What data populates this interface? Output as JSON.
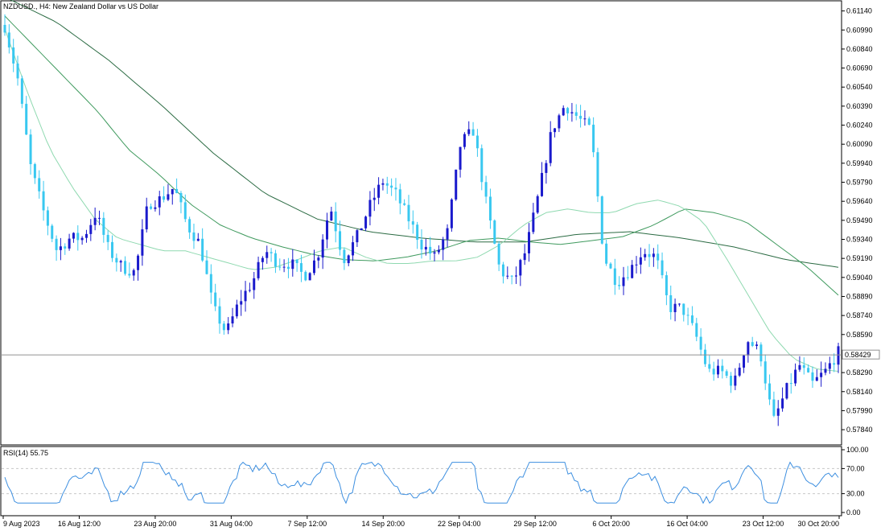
{
  "chart_title": "NZDUSD., H4:  New Zealand Dollar vs US Dollar",
  "current_price_label": "0.58429",
  "rsi_title": "RSI(14) 55.75",
  "colors": {
    "bull": "#1a1acc",
    "bear": "#39c8f0",
    "ma_fast": "#8fd9b0",
    "ma_mid": "#3f9a5e",
    "ma_slow": "#2b6b43",
    "rsi": "#3d8fe0",
    "frame": "#000000",
    "grid_dash": "#c8c8c8",
    "price_line": "#909090"
  },
  "chart_data": {
    "type": "candlestick",
    "symbol": "NZDUSD.",
    "timeframe": "H4",
    "price_ylim": [
      0.5772,
      0.6122
    ],
    "price_ticks": [
      0.6114,
      0.6099,
      0.6084,
      0.6069,
      0.6054,
      0.6039,
      0.6024,
      0.6009,
      0.5994,
      0.5979,
      0.5964,
      0.5949,
      0.5934,
      0.5919,
      0.5904,
      0.5889,
      0.5874,
      0.5859,
      0.58429,
      0.5829,
      0.5814,
      0.5799,
      0.5784
    ],
    "price_tick_labels": [
      "0.61140",
      "0.60990",
      "0.60840",
      "0.60690",
      "0.60540",
      "0.60390",
      "0.60240",
      "0.60090",
      "0.59940",
      "0.59790",
      "0.59640",
      "0.59490",
      "0.59340",
      "0.59190",
      "0.59040",
      "0.58890",
      "0.58740",
      "0.58590",
      "0.58429",
      "0.58290",
      "0.58140",
      "0.57990",
      "0.57840"
    ],
    "current_price": 0.58429,
    "time_labels": [
      "9 Aug 2023",
      "16 Aug 12:00",
      "23 Aug 20:00",
      "31 Aug 04:00",
      "7 Sep 12:00",
      "14 Sep 20:00",
      "22 Sep 04:00",
      "29 Sep 12:00",
      "6 Oct 20:00",
      "16 Oct 04:00",
      "23 Oct 12:00",
      "30 Oct 20:00"
    ],
    "price_anchors": [
      0.6102,
      0.606,
      0.599,
      0.5955,
      0.5925,
      0.5935,
      0.5935,
      0.5955,
      0.5925,
      0.5912,
      0.5908,
      0.5962,
      0.5966,
      0.5975,
      0.5945,
      0.593,
      0.588,
      0.586,
      0.5885,
      0.59,
      0.5925,
      0.5915,
      0.5915,
      0.5905,
      0.592,
      0.596,
      0.5918,
      0.5935,
      0.596,
      0.598,
      0.597,
      0.595,
      0.593,
      0.592,
      0.594,
      0.601,
      0.602,
      0.596,
      0.591,
      0.59,
      0.5925,
      0.597,
      0.602,
      0.604,
      0.603,
      0.602,
      0.592,
      0.59,
      0.591,
      0.5925,
      0.592,
      0.588,
      0.588,
      0.586,
      0.583,
      0.583,
      0.582,
      0.5855,
      0.5845,
      0.579,
      0.5815,
      0.5835,
      0.582,
      0.583,
      0.5845
    ],
    "ma_fast": [
      0.61,
      0.605,
      0.6005,
      0.5975,
      0.595,
      0.5935,
      0.593,
      0.5925,
      0.5925,
      0.592,
      0.5915,
      0.591,
      0.5912,
      0.5918,
      0.5925,
      0.5928,
      0.592,
      0.5915,
      0.5915,
      0.5917,
      0.5917,
      0.592,
      0.593,
      0.5945,
      0.5955,
      0.5958,
      0.5955,
      0.5955,
      0.5962,
      0.5965,
      0.596,
      0.5948,
      0.592,
      0.589,
      0.586,
      0.584,
      0.5832,
      0.583
    ],
    "ma_mid": [
      0.611,
      0.6085,
      0.606,
      0.6035,
      0.6005,
      0.5985,
      0.5962,
      0.5945,
      0.5935,
      0.5928,
      0.5922,
      0.5918,
      0.5917,
      0.592,
      0.5925,
      0.5933,
      0.5935,
      0.5932,
      0.593,
      0.5933,
      0.5936,
      0.5945,
      0.5958,
      0.5955,
      0.5948,
      0.593,
      0.5912,
      0.589
    ],
    "ma_slow": [
      0.6125,
      0.6105,
      0.6075,
      0.604,
      0.6002,
      0.597,
      0.595,
      0.594,
      0.5935,
      0.5932,
      0.5932,
      0.5938,
      0.594,
      0.5935,
      0.5928,
      0.5918,
      0.5912
    ],
    "rsi_ylim": [
      0,
      100
    ],
    "rsi_ticks": [
      100,
      70,
      30,
      0
    ],
    "rsi_tick_labels": [
      "100.00",
      "70.00",
      "30.00",
      "0.00"
    ],
    "rsi_levels": [
      70,
      30
    ],
    "rsi_last": 55.75
  }
}
